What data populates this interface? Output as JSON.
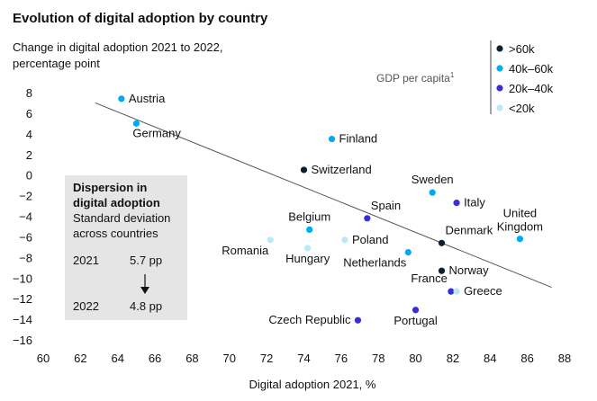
{
  "chart_data": {
    "type": "scatter",
    "title": "Evolution of digital adoption by country",
    "ylabel_lines": [
      "Change in digital adoption 2021 to 2022,",
      "percentage point"
    ],
    "xlabel": "Digital adoption 2021, %",
    "xlim": [
      60,
      88
    ],
    "ylim": [
      -16,
      8
    ],
    "xticks": [
      60,
      62,
      64,
      66,
      68,
      70,
      72,
      74,
      76,
      78,
      80,
      82,
      84,
      86,
      88
    ],
    "yticks": [
      8,
      6,
      4,
      2,
      0,
      -2,
      -4,
      -6,
      -8,
      -10,
      -12,
      -14,
      -16
    ],
    "grid": false,
    "trendline": {
      "x": [
        62.8,
        87.3
      ],
      "y": [
        7.0,
        -10.9
      ]
    },
    "legend": {
      "title": "GDP per capita",
      "title_superscript": "1",
      "placement": "top-right",
      "items": [
        {
          "key": "gt60",
          "label": ">60k",
          "color": "#0b1f33"
        },
        {
          "key": "40to60",
          "label": "40k–60k",
          "color": "#00a9f4"
        },
        {
          "key": "20to40",
          "label": "20k–40k",
          "color": "#3a2bdc"
        },
        {
          "key": "lt20",
          "label": "<20k",
          "color": "#b9e8f9"
        }
      ]
    },
    "points": [
      {
        "name": "Austria",
        "x": 64.2,
        "y": 7.4,
        "group": "40to60",
        "label_pos": "right"
      },
      {
        "name": "Germany",
        "x": 65.0,
        "y": 5.0,
        "group": "40to60",
        "label_pos": "below-right"
      },
      {
        "name": "Finland",
        "x": 75.5,
        "y": 3.5,
        "group": "40to60",
        "label_pos": "right"
      },
      {
        "name": "Switzerland",
        "x": 74.0,
        "y": 0.5,
        "group": "gt60",
        "label_pos": "right"
      },
      {
        "name": "Sweden",
        "x": 80.9,
        "y": -1.7,
        "group": "40to60",
        "label_pos": "above"
      },
      {
        "name": "Italy",
        "x": 82.2,
        "y": -2.7,
        "group": "20to40",
        "label_pos": "right"
      },
      {
        "name": "Spain",
        "x": 77.4,
        "y": -4.2,
        "group": "20to40",
        "label_pos": "above-right"
      },
      {
        "name": "Belgium",
        "x": 74.3,
        "y": -5.3,
        "group": "40to60",
        "label_pos": "above"
      },
      {
        "name": "Poland",
        "x": 76.2,
        "y": -6.3,
        "group": "lt20",
        "label_pos": "right"
      },
      {
        "name": "Hungary",
        "x": 74.2,
        "y": -7.1,
        "group": "lt20",
        "label_pos": "below"
      },
      {
        "name": "Romania",
        "x": 72.2,
        "y": -6.3,
        "group": "lt20",
        "label_pos": "below-left"
      },
      {
        "name": "Denmark",
        "x": 81.4,
        "y": -6.6,
        "group": "gt60",
        "label_pos": "above-right"
      },
      {
        "name": "United Kingdom",
        "x": 85.6,
        "y": -6.2,
        "group": "40to60",
        "label_pos": "above"
      },
      {
        "name": "Netherlands",
        "x": 79.6,
        "y": -7.5,
        "group": "40to60",
        "label_pos": "below-left"
      },
      {
        "name": "Norway",
        "x": 81.4,
        "y": -9.3,
        "group": "gt60",
        "label_pos": "right"
      },
      {
        "name": "France",
        "x": 81.9,
        "y": -11.3,
        "group": "20to40",
        "label_pos": "above-left"
      },
      {
        "name": "Greece",
        "x": 82.2,
        "y": -11.3,
        "group": "lt20",
        "label_pos": "right"
      },
      {
        "name": "Portugal",
        "x": 80.0,
        "y": -13.1,
        "group": "20to40",
        "label_pos": "below"
      },
      {
        "name": "Czech Republic",
        "x": 76.9,
        "y": -14.1,
        "group": "20to40",
        "label_pos": "left"
      }
    ],
    "dispersion_box": {
      "title_lines": [
        "Dispersion in",
        "digital adoption"
      ],
      "subtitle_lines": [
        "Standard deviation",
        "across countries"
      ],
      "rows": [
        {
          "year": "2021",
          "value": "5.7 pp"
        },
        {
          "year": "2022",
          "value": "4.8 pp"
        }
      ],
      "arrow": "down-arrow"
    }
  }
}
